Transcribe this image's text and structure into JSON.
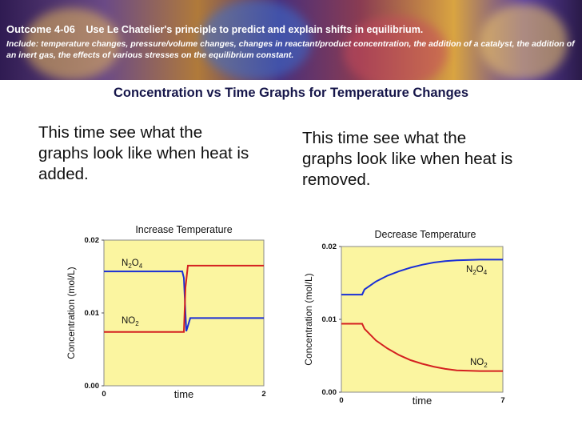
{
  "header": {
    "outcome_code": "Outcome 4-06",
    "outcome_text": "Use Le Chatelier's principle to predict and explain shifts in equilibrium.",
    "include_text": "Include: temperature changes, pressure/volume changes, changes in reactant/product concentration, the addition of a catalyst, the addition of an inert gas, the effects of various stresses on the equilibrium constant."
  },
  "slide_title": "Concentration vs Time Graphs for Temperature Changes",
  "left_text": "This time see what the graphs look like when heat is added.",
  "right_text": "This time see what the graphs look like when heat is removed.",
  "chart_data": [
    {
      "type": "line",
      "title": "Increase Temperature",
      "xlabel": "time",
      "ylabel": "Concentration (mol/L)",
      "xlim": [
        0,
        2
      ],
      "ylim": [
        0,
        0.02
      ],
      "x_ticks": [
        "0",
        "2"
      ],
      "y_ticks": [
        "0.00",
        "0.01",
        "0.02"
      ],
      "background": "#fbf5a0",
      "series": [
        {
          "name": "N2O4",
          "label_main": "N",
          "label_sub1": "2",
          "label_mid": "O",
          "label_sub2": "4",
          "color": "#1a2fd6",
          "points": [
            [
              0,
              0.0157
            ],
            [
              0.98,
              0.0157
            ],
            [
              1.0,
              0.0148
            ],
            [
              1.03,
              0.0075
            ],
            [
              1.08,
              0.0093
            ],
            [
              1.2,
              0.0093
            ],
            [
              2,
              0.0093
            ]
          ]
        },
        {
          "name": "NO2",
          "label_main": "NO",
          "label_sub1": "2",
          "color": "#d42020",
          "points": [
            [
              0,
              0.0074
            ],
            [
              1.0,
              0.0074
            ],
            [
              1.02,
              0.0135
            ],
            [
              1.05,
              0.0165
            ],
            [
              1.12,
              0.0165
            ],
            [
              2,
              0.0165
            ]
          ]
        }
      ]
    },
    {
      "type": "line",
      "title": "Decrease Temperature",
      "xlabel": "time",
      "ylabel": "Concentration (mol/L)",
      "xlim": [
        0,
        7
      ],
      "ylim": [
        0,
        0.02
      ],
      "x_ticks": [
        "0",
        "7"
      ],
      "y_ticks": [
        "0.00",
        "0.01",
        "0.02"
      ],
      "background": "#fbf5a0",
      "series": [
        {
          "name": "N2O4",
          "label_main": "N",
          "label_sub1": "2",
          "label_mid": "O",
          "label_sub2": "4",
          "color": "#1a2fd6",
          "points": [
            [
              0,
              0.0134
            ],
            [
              0.9,
              0.0134
            ],
            [
              1.0,
              0.0141
            ],
            [
              1.5,
              0.0152
            ],
            [
              2,
              0.016
            ],
            [
              2.5,
              0.0166
            ],
            [
              3,
              0.0171
            ],
            [
              3.5,
              0.0175
            ],
            [
              4,
              0.0178
            ],
            [
              4.5,
              0.018
            ],
            [
              5,
              0.0181
            ],
            [
              6,
              0.0182
            ],
            [
              7,
              0.0182
            ]
          ]
        },
        {
          "name": "NO2",
          "label_main": "NO",
          "label_sub1": "2",
          "color": "#d42020",
          "points": [
            [
              0,
              0.0094
            ],
            [
              0.9,
              0.0094
            ],
            [
              1.0,
              0.0087
            ],
            [
              1.5,
              0.0071
            ],
            [
              2,
              0.006
            ],
            [
              2.5,
              0.0051
            ],
            [
              3,
              0.0044
            ],
            [
              3.5,
              0.0039
            ],
            [
              4,
              0.0035
            ],
            [
              4.5,
              0.0032
            ],
            [
              5,
              0.003
            ],
            [
              6,
              0.0029
            ],
            [
              7,
              0.0029
            ]
          ]
        }
      ]
    }
  ]
}
